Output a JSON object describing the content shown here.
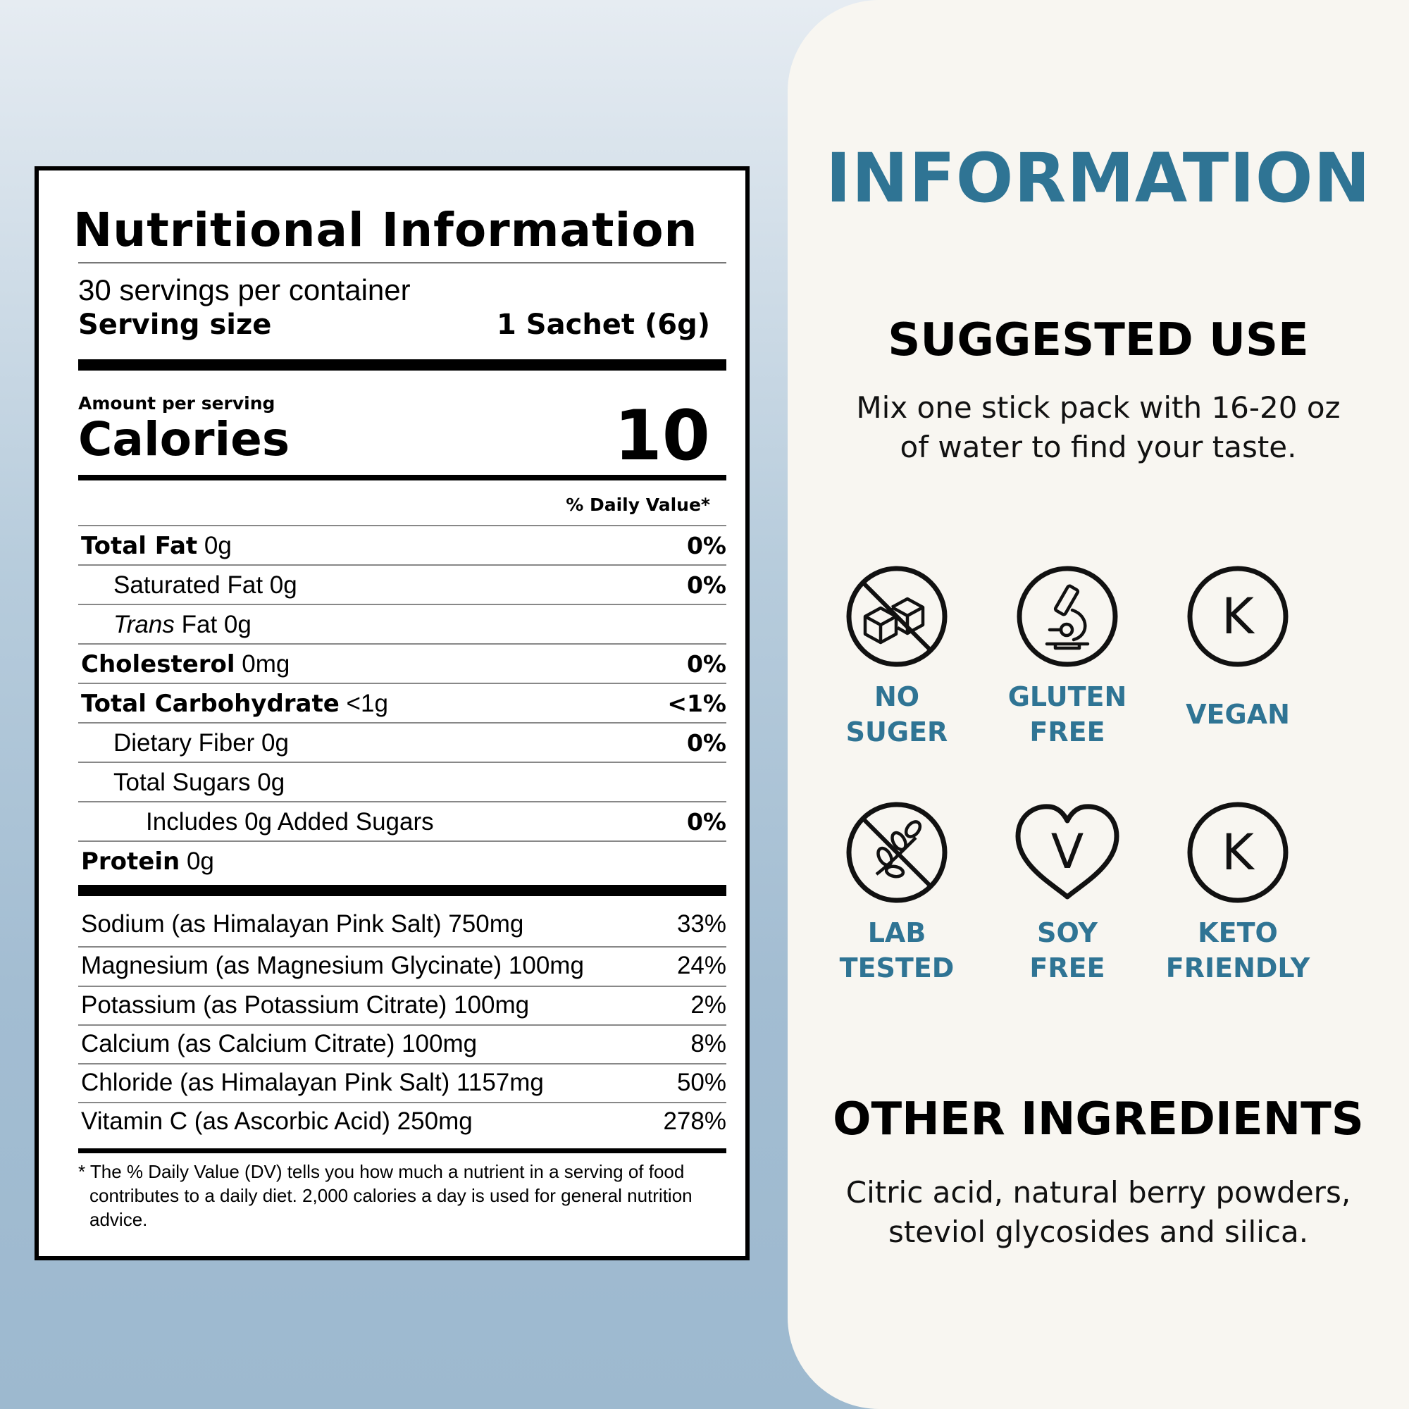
{
  "nutrition": {
    "title": "Nutritional Information",
    "servings_per_container": "30 servings per container",
    "serving_size_label": "Serving size",
    "serving_size_value": "1 Sachet (6g)",
    "amount_per_serving": "Amount per serving",
    "calories_label": "Calories",
    "calories_value": "10",
    "daily_value_header": "% Daily Value*",
    "rows": [
      {
        "name": "Total Fat",
        "amount": " 0g",
        "dv": "0%"
      },
      {
        "name": "Saturated Fat 0g",
        "dv": "0%"
      },
      {
        "name_italic": "Trans",
        "amount": " Fat 0g"
      },
      {
        "name": "Cholesterol",
        "amount": " 0mg",
        "dv": "0%"
      },
      {
        "name": "Total Carbohydrate",
        "amount": " <1g",
        "dv": "<1%"
      },
      {
        "name": "Dietary Fiber 0g",
        "dv": "0%"
      },
      {
        "name": "Total Sugars 0g"
      },
      {
        "name": "Includes 0g Added Sugars",
        "dv": "0%"
      },
      {
        "name": "Protein",
        "amount": " 0g"
      }
    ],
    "minerals": [
      {
        "label": "Sodium (as Himalayan Pink Salt) 750mg",
        "dv": "33%"
      },
      {
        "label": "Magnesium (as Magnesium Glycinate) 100mg",
        "dv": "24%"
      },
      {
        "label": "Potassium (as Potassium Citrate) 100mg",
        "dv": "2%"
      },
      {
        "label": "Calcium (as Calcium Citrate) 100mg",
        "dv": "8%"
      },
      {
        "label": "Chloride (as Himalayan Pink Salt) 1157mg",
        "dv": "50%"
      },
      {
        "label": "Vitamin C (as Ascorbic Acid) 250mg",
        "dv": "278%"
      }
    ],
    "footnote": "* The % Daily Value (DV) tells you how much a nutrient in a serving of food contributes to a daily diet. 2,000 calories a day is used for general nutrition advice."
  },
  "info": {
    "title": "INFORMATION",
    "suggested_use_title": "SUGGESTED USE",
    "suggested_use_line1": "Mix one stick pack with 16-20 oz",
    "suggested_use_line2": "of water to find your taste.",
    "badges": [
      {
        "icon": "no-sugar-icon",
        "line1": "NO",
        "line2": "SUGER"
      },
      {
        "icon": "microscope-icon",
        "line1": "GLUTEN",
        "line2": "FREE"
      },
      {
        "icon": "k-circle-icon",
        "line1": "VEGAN",
        "line2": "",
        "glyph": "K"
      },
      {
        "icon": "no-soy-icon",
        "line1": "LAB",
        "line2": "TESTED"
      },
      {
        "icon": "v-heart-icon",
        "line1": "SOY",
        "line2": "FREE",
        "glyph": "V"
      },
      {
        "icon": "k-circle-icon",
        "line1": "KETO",
        "line2": "FRIENDLY",
        "glyph": "K"
      }
    ],
    "other_ingredients_title": "OTHER INGREDIENTS",
    "other_ingredients_line1": "Citric acid, natural berry powders,",
    "other_ingredients_line2": "steviol glycosides and silica."
  },
  "colors": {
    "accent": "#2f7494",
    "card_bg": "#f8f6f1",
    "background_top": "#e6ecf2",
    "background_bottom": "#9db9cf"
  }
}
